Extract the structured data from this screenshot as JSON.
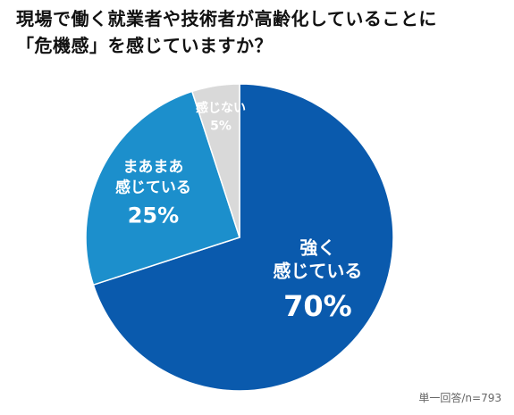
{
  "title_line1": "現場で働く就業者や技術者が高齢化していることに",
  "title_line2": "「危機感」を感じていますか？",
  "note": "単一回答/n=793",
  "colors": {
    "strong": "#0a5aad",
    "somewhat": "#1c8fcc",
    "none": "#d9d9d9",
    "label_light": "#ffffff",
    "label_dark": "#ffffff"
  },
  "chart_data": {
    "type": "pie",
    "title": "現場で働く就業者や技術者が高齢化していることに「危機感」を感じていますか？",
    "start": "12 o'clock",
    "direction": "clockwise",
    "slices": [
      {
        "label_lines": [
          "強く",
          "感じている"
        ],
        "value": 70,
        "value_label": "70%",
        "color_key": "strong"
      },
      {
        "label_lines": [
          "まあまあ",
          "感じている"
        ],
        "value": 25,
        "value_label": "25%",
        "color_key": "somewhat"
      },
      {
        "label_lines": [
          "感じない"
        ],
        "value": 5,
        "value_label": "5%",
        "color_key": "none"
      }
    ]
  }
}
